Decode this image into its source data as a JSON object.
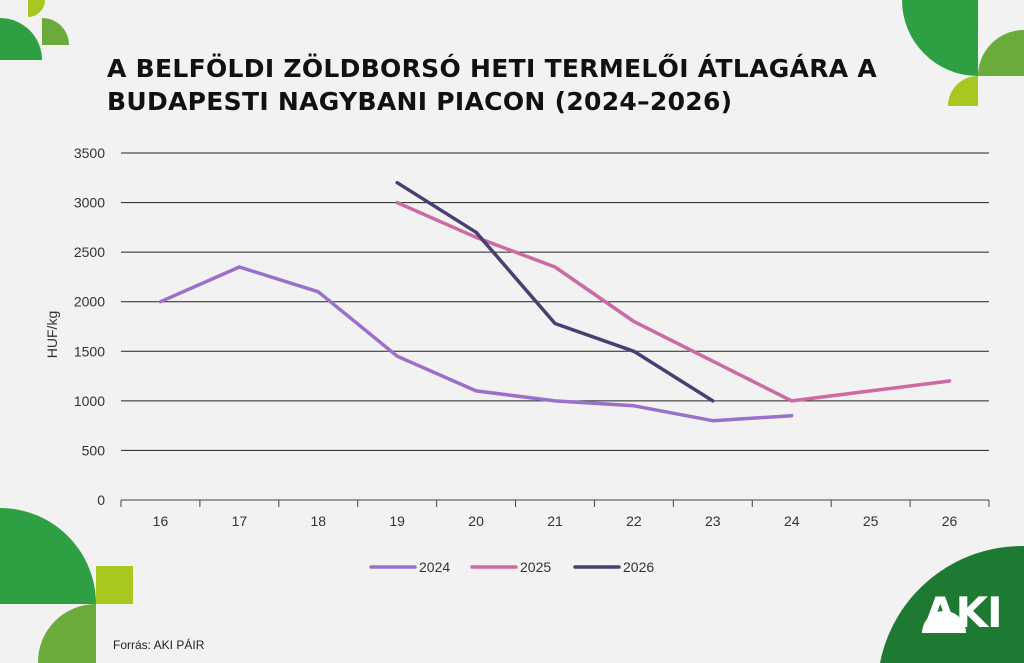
{
  "title": "A BELFÖLDI ZÖLDBORSÓ HETI TERMELŐI ÁTLAGÁRA A BUDAPESTI NAGYBANI PIACON (2024–2026)",
  "source": "Forrás: AKI PÁIR",
  "logo": "AKI",
  "colors": {
    "background": "#f2f2f2",
    "green_dark": "#1e7a32",
    "green_mid": "#2ea043",
    "green_light": "#6aab3c",
    "lime": "#a8c820"
  },
  "chart_data": {
    "type": "line",
    "title": "A BELFÖLDI ZÖLDBORSÓ HETI TERMELŐI ÁTLAGÁRA A BUDAPESTI NAGYBANI PIACON (2024–2026)",
    "xlabel": "",
    "ylabel": "HUF/kg",
    "categories": [
      "16",
      "17",
      "18",
      "19",
      "20",
      "21",
      "22",
      "23",
      "24",
      "25",
      "26"
    ],
    "ylim": [
      0,
      3500
    ],
    "yticks": [
      0,
      500,
      1000,
      1500,
      2000,
      2500,
      3000,
      3500
    ],
    "grid": true,
    "legend_position": "bottom",
    "series": [
      {
        "name": "2024",
        "color": "#9b6fcc",
        "values": [
          2000,
          2350,
          2100,
          1450,
          1100,
          1000,
          950,
          800,
          850,
          null,
          null
        ]
      },
      {
        "name": "2025",
        "color": "#cc6aa1",
        "values": [
          null,
          null,
          null,
          3000,
          2650,
          2350,
          1800,
          1400,
          1000,
          1100,
          1200
        ]
      },
      {
        "name": "2026",
        "color": "#4a3f73",
        "values": [
          null,
          null,
          null,
          3200,
          2700,
          1780,
          1500,
          1000,
          null,
          null,
          null
        ]
      }
    ]
  }
}
